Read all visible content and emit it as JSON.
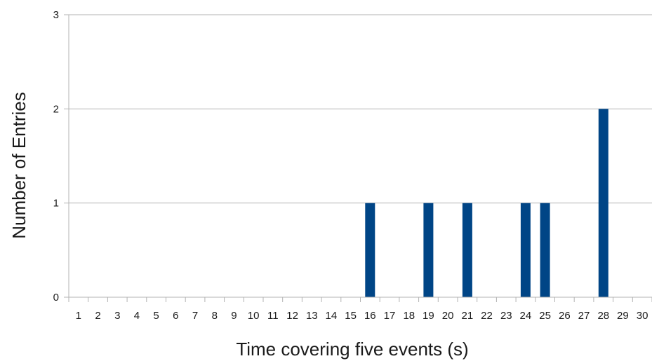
{
  "chart_data": {
    "type": "bar",
    "title": "",
    "xlabel": "Time covering five events (s)",
    "ylabel": "Number of Entries",
    "categories": [
      "1",
      "2",
      "3",
      "4",
      "5",
      "6",
      "7",
      "8",
      "9",
      "10",
      "11",
      "12",
      "13",
      "14",
      "15",
      "16",
      "17",
      "18",
      "19",
      "20",
      "21",
      "22",
      "23",
      "24",
      "25",
      "26",
      "27",
      "28",
      "29",
      "30"
    ],
    "values": [
      0,
      0,
      0,
      0,
      0,
      0,
      0,
      0,
      0,
      0,
      0,
      0,
      0,
      0,
      0,
      1,
      0,
      0,
      1,
      0,
      1,
      0,
      0,
      1,
      1,
      0,
      0,
      2,
      0,
      0
    ],
    "ylim": [
      0,
      3
    ],
    "yticks": [
      "0",
      "1",
      "2",
      "3"
    ],
    "grid": true,
    "bar_color": "#004586",
    "grid_color": "#b3b3b3"
  }
}
